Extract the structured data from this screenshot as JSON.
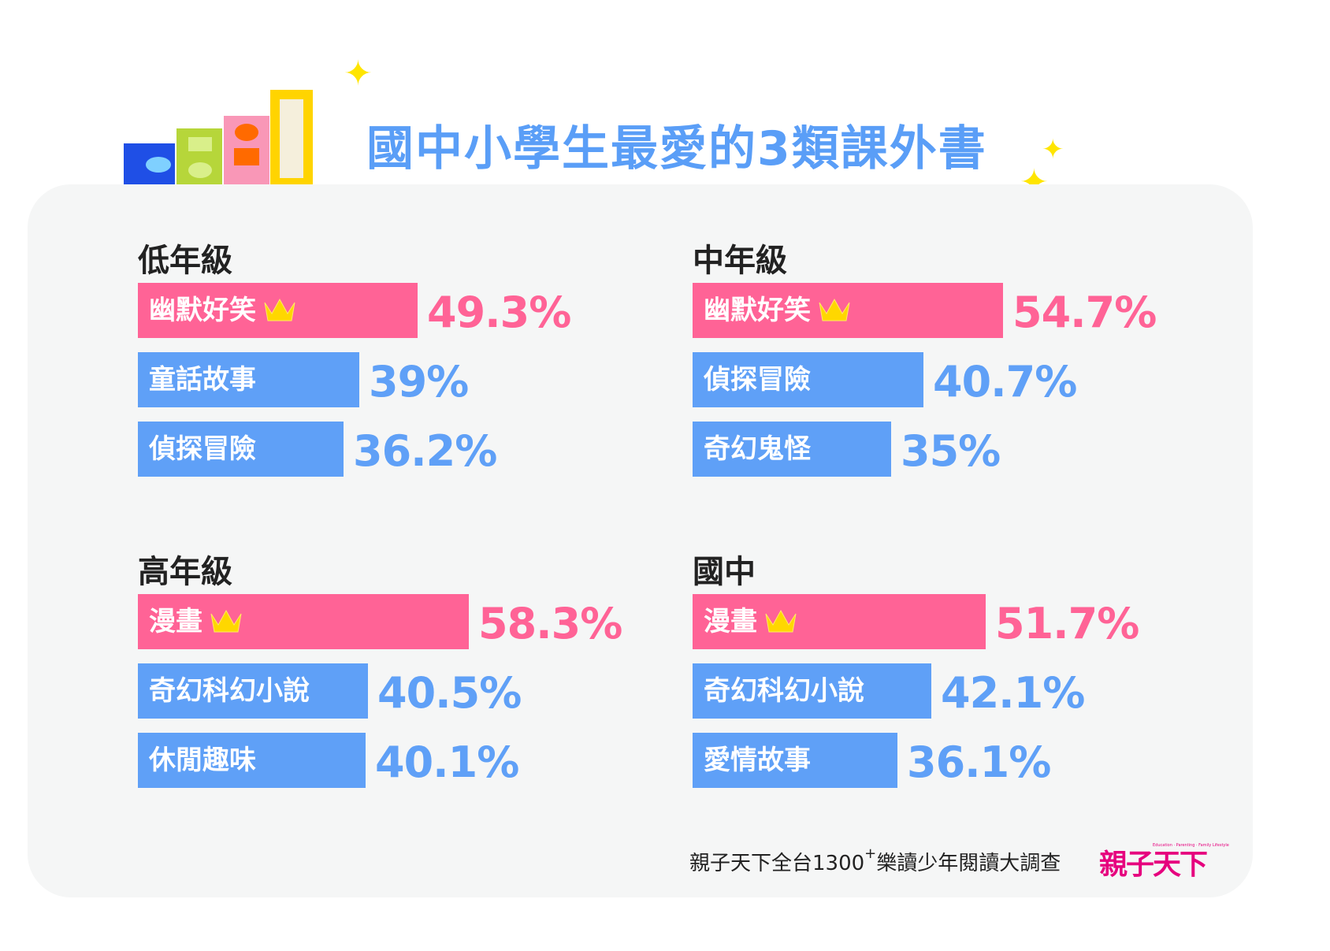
{
  "title": "國中小學生最愛的3類課外書",
  "colors": {
    "top": "#ff6396",
    "other": "#5fa0f7",
    "title": "#5a9ef7",
    "panel": "#f5f6f6"
  },
  "chart_data": {
    "type": "bar",
    "title": "國中小學生最愛的3類課外書",
    "unit": "%",
    "xlim": [
      0,
      100
    ],
    "groups": [
      {
        "name": "低年級",
        "items": [
          {
            "label": "幽默好笑",
            "value": 49.3,
            "display": "49.3%",
            "crown": true
          },
          {
            "label": "童話故事",
            "value": 39,
            "display": "39%",
            "crown": false
          },
          {
            "label": "偵探冒險",
            "value": 36.2,
            "display": "36.2%",
            "crown": false
          }
        ]
      },
      {
        "name": "中年級",
        "items": [
          {
            "label": "幽默好笑",
            "value": 54.7,
            "display": "54.7%",
            "crown": true
          },
          {
            "label": "偵探冒險",
            "value": 40.7,
            "display": "40.7%",
            "crown": false
          },
          {
            "label": "奇幻鬼怪",
            "value": 35,
            "display": "35%",
            "crown": false
          }
        ]
      },
      {
        "name": "高年級",
        "items": [
          {
            "label": "漫畫",
            "value": 58.3,
            "display": "58.3%",
            "crown": true
          },
          {
            "label": "奇幻科幻小說",
            "value": 40.5,
            "display": "40.5%",
            "crown": false
          },
          {
            "label": "休閒趣味",
            "value": 40.1,
            "display": "40.1%",
            "crown": false
          }
        ]
      },
      {
        "name": "國中",
        "items": [
          {
            "label": "漫畫",
            "value": 51.7,
            "display": "51.7%",
            "crown": true
          },
          {
            "label": "奇幻科幻小說",
            "value": 42.1,
            "display": "42.1%",
            "crown": false
          },
          {
            "label": "愛情故事",
            "value": 36.1,
            "display": "36.1%",
            "crown": false
          }
        ]
      }
    ]
  },
  "footer": {
    "source_pre": "親子天下全台1300",
    "source_sup": "+",
    "source_post": "樂讀少年閱讀大調查",
    "logo_text": "親子天下",
    "logo_sub": "Education · Parenting · Family Lifestyle"
  }
}
